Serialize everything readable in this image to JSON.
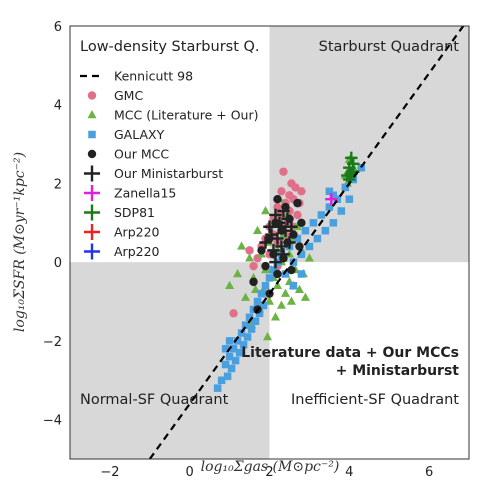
{
  "chart_data": {
    "type": "scatter",
    "xlabel": "log₁₀Σgas (M⊙pc⁻²)",
    "ylabel": "log₁₀ΣSFR (M⊙yr⁻¹kpc⁻²)",
    "xlim": [
      -3,
      7
    ],
    "ylim": [
      -5,
      6
    ],
    "xticks": [
      "−2",
      "0",
      "2",
      "4",
      "6"
    ],
    "yticks": [
      "6",
      "4",
      "2",
      "0",
      "−2",
      "−4"
    ],
    "grid": false,
    "legend_position": "upper-left",
    "quadrant_labels": {
      "top_left": "Low-density Starburst Q.",
      "top_right": "Starburst Quadrant",
      "bottom_left": "Normal-SF Quadrant",
      "bottom_right": "Inefficient-SF Quadrant"
    },
    "annotation": [
      "Literature data + Our MCCs",
      "+ Ministarburst"
    ],
    "quadrant_shading": {
      "color": "#d8d8d8",
      "x_split": 2,
      "y_split": 0
    },
    "kennicutt": {
      "name": "Kennicutt 98",
      "slope": 1.4,
      "intercept": -3.6,
      "color": "#000000"
    },
    "series": [
      {
        "name": "GMC",
        "marker": "circle",
        "color": "#e0708a",
        "points": [
          [
            1.1,
            -1.3
          ],
          [
            1.5,
            0.3
          ],
          [
            1.6,
            -0.1
          ],
          [
            1.7,
            0.1
          ],
          [
            1.8,
            0.4
          ],
          [
            1.9,
            0.6
          ],
          [
            2.0,
            0.9
          ],
          [
            2.0,
            0.2
          ],
          [
            2.1,
            0.7
          ],
          [
            2.1,
            1.1
          ],
          [
            2.2,
            1.4
          ],
          [
            2.2,
            0.5
          ],
          [
            2.25,
            1.2
          ],
          [
            2.3,
            1.8
          ],
          [
            2.3,
            0.9
          ],
          [
            2.35,
            2.3
          ],
          [
            2.4,
            1.5
          ],
          [
            2.4,
            0.7
          ],
          [
            2.45,
            1.0
          ],
          [
            2.5,
            1.7
          ],
          [
            2.5,
            1.3
          ],
          [
            2.55,
            2.0
          ],
          [
            2.6,
            1.6
          ],
          [
            2.6,
            0.9
          ],
          [
            2.65,
            1.9
          ],
          [
            2.7,
            1.2
          ],
          [
            2.75,
            1.5
          ],
          [
            2.2,
            -0.1
          ],
          [
            1.9,
            0.5
          ],
          [
            2.8,
            1.8
          ]
        ]
      },
      {
        "name": "MCC (Literature + Our)",
        "marker": "triangle",
        "color": "#6ab344",
        "points": [
          [
            1.0,
            -0.6
          ],
          [
            1.2,
            -0.3
          ],
          [
            1.3,
            0.4
          ],
          [
            1.4,
            -0.9
          ],
          [
            1.5,
            0.1
          ],
          [
            1.55,
            -1.6
          ],
          [
            1.6,
            -0.4
          ],
          [
            1.7,
            0.8
          ],
          [
            1.75,
            -1.2
          ],
          [
            1.8,
            0.2
          ],
          [
            1.85,
            -0.7
          ],
          [
            1.9,
            1.3
          ],
          [
            1.95,
            -1.9
          ],
          [
            2.0,
            0.5
          ],
          [
            2.0,
            -1.0
          ],
          [
            2.05,
            -0.2
          ],
          [
            2.1,
            1.0
          ],
          [
            2.15,
            -1.4
          ],
          [
            2.2,
            0.3
          ],
          [
            2.2,
            -0.6
          ],
          [
            2.25,
            1.6
          ],
          [
            2.3,
            0.0
          ],
          [
            2.3,
            -1.1
          ],
          [
            2.35,
            0.7
          ],
          [
            2.4,
            -0.3
          ],
          [
            2.4,
            -0.8
          ],
          [
            2.45,
            1.2
          ],
          [
            2.5,
            0.2
          ],
          [
            2.5,
            -0.5
          ],
          [
            2.55,
            -1.0
          ],
          [
            2.6,
            0.6
          ],
          [
            2.65,
            -0.2
          ],
          [
            2.7,
            0.9
          ],
          [
            2.75,
            -0.7
          ],
          [
            2.8,
            0.3
          ],
          [
            2.85,
            -0.3
          ],
          [
            2.9,
            -0.9
          ],
          [
            3.0,
            0.1
          ],
          [
            1.9,
            -0.2
          ],
          [
            2.1,
            -0.4
          ],
          [
            2.35,
            0.1
          ],
          [
            1.65,
            -0.7
          ],
          [
            2.6,
            -0.6
          ],
          [
            3.95,
            2.0
          ],
          [
            4.0,
            2.3
          ],
          [
            4.05,
            2.1
          ],
          [
            4.1,
            2.4
          ],
          [
            4.0,
            2.6
          ],
          [
            3.9,
            2.2
          ]
        ]
      },
      {
        "name": "GALAXY",
        "marker": "square",
        "color": "#4a9fdf",
        "points": [
          [
            0.7,
            -3.2
          ],
          [
            0.8,
            -3.0
          ],
          [
            0.9,
            -2.6
          ],
          [
            0.95,
            -2.9
          ],
          [
            1.0,
            -2.4
          ],
          [
            1.05,
            -2.7
          ],
          [
            1.1,
            -2.2
          ],
          [
            1.15,
            -2.5
          ],
          [
            1.2,
            -2.0
          ],
          [
            1.25,
            -2.3
          ],
          [
            1.3,
            -1.8
          ],
          [
            1.35,
            -2.1
          ],
          [
            1.4,
            -1.6
          ],
          [
            1.45,
            -1.9
          ],
          [
            1.5,
            -1.4
          ],
          [
            1.55,
            -1.7
          ],
          [
            1.6,
            -1.2
          ],
          [
            1.65,
            -1.5
          ],
          [
            1.7,
            -1.0
          ],
          [
            1.75,
            -1.3
          ],
          [
            1.8,
            -0.8
          ],
          [
            1.85,
            -1.1
          ],
          [
            1.9,
            -0.6
          ],
          [
            2.0,
            -0.4
          ],
          [
            2.1,
            -0.2
          ],
          [
            2.2,
            0.0
          ],
          [
            2.3,
            0.2
          ],
          [
            2.4,
            -0.3
          ],
          [
            2.5,
            0.4
          ],
          [
            2.6,
            0.0
          ],
          [
            2.7,
            0.6
          ],
          [
            2.8,
            0.2
          ],
          [
            2.9,
            0.8
          ],
          [
            3.0,
            0.4
          ],
          [
            3.1,
            1.0
          ],
          [
            3.2,
            0.6
          ],
          [
            3.3,
            1.2
          ],
          [
            3.4,
            0.8
          ],
          [
            3.5,
            1.4
          ],
          [
            3.6,
            1.0
          ],
          [
            3.7,
            1.6
          ],
          [
            3.8,
            1.3
          ],
          [
            3.9,
            1.9
          ],
          [
            4.0,
            1.6
          ],
          [
            4.1,
            2.1
          ],
          [
            4.3,
            2.4
          ],
          [
            3.5,
            1.8
          ],
          [
            2.8,
            -0.3
          ],
          [
            2.6,
            -0.6
          ],
          [
            1.0,
            -2.0
          ],
          [
            0.9,
            -2.2
          ],
          [
            3.6,
            1.7
          ]
        ]
      },
      {
        "name": "Our MCC",
        "marker": "circle",
        "color": "#222222",
        "points": [
          [
            1.6,
            -0.5
          ],
          [
            1.8,
            0.3
          ],
          [
            1.9,
            -0.1
          ],
          [
            2.0,
            0.6
          ],
          [
            2.0,
            -0.8
          ],
          [
            2.1,
            0.2
          ],
          [
            2.15,
            1.0
          ],
          [
            2.2,
            -0.3
          ],
          [
            2.3,
            0.8
          ],
          [
            2.35,
            0.1
          ],
          [
            2.4,
            1.4
          ],
          [
            2.45,
            0.5
          ],
          [
            2.5,
            1.1
          ],
          [
            2.55,
            -0.2
          ],
          [
            2.6,
            0.7
          ],
          [
            2.7,
            1.5
          ],
          [
            2.75,
            0.4
          ],
          [
            2.8,
            1.0
          ],
          [
            2.2,
            1.6
          ],
          [
            1.7,
            -1.2
          ]
        ]
      },
      {
        "name": "Our Ministarburst",
        "marker": "plus",
        "color": "#222222",
        "points": [
          [
            1.9,
            0.5
          ],
          [
            2.0,
            0.9
          ],
          [
            2.1,
            0.3
          ],
          [
            2.15,
            1.2
          ],
          [
            2.2,
            0.6
          ],
          [
            2.25,
            1.0
          ],
          [
            2.3,
            0.4
          ],
          [
            2.35,
            1.3
          ],
          [
            2.4,
            0.8
          ],
          [
            2.45,
            1.1
          ],
          [
            2.5,
            0.5
          ],
          [
            2.3,
            0.9
          ],
          [
            2.05,
            0.7
          ],
          [
            2.35,
            0.2
          ],
          [
            2.55,
            0.9
          ],
          [
            2.15,
            0.0
          ]
        ]
      },
      {
        "name": "Zanella15",
        "marker": "plus",
        "color": "#e020e0",
        "points": [
          [
            3.55,
            1.6
          ]
        ]
      },
      {
        "name": "SDP81",
        "marker": "plus",
        "color": "#1a7a1a",
        "points": [
          [
            4.0,
            2.1
          ],
          [
            4.05,
            2.25
          ],
          [
            4.0,
            2.4
          ],
          [
            4.1,
            2.5
          ],
          [
            4.05,
            2.65
          ],
          [
            3.95,
            2.2
          ],
          [
            4.1,
            2.3
          ]
        ]
      },
      {
        "name": "Arp220",
        "marker": "plus",
        "color": "#ee2222",
        "points": []
      },
      {
        "name": "Arp220",
        "marker": "plus",
        "color": "#2233ee",
        "points": []
      }
    ]
  }
}
